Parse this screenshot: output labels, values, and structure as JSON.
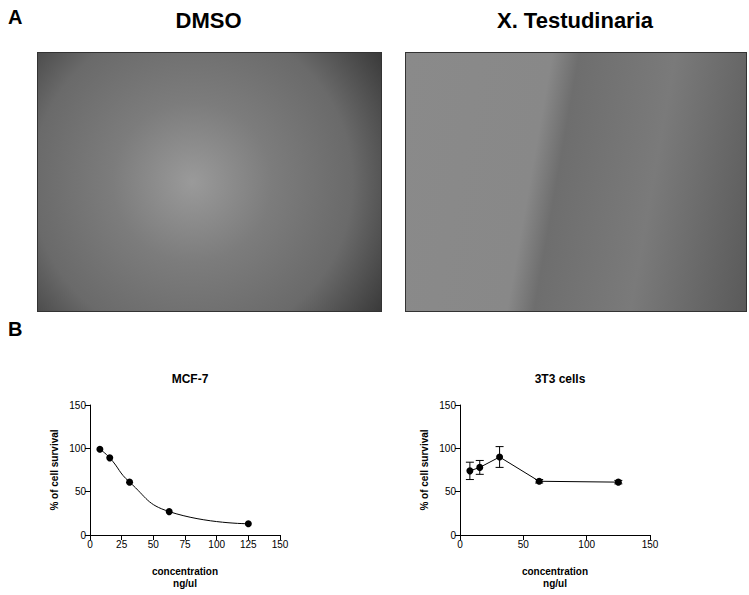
{
  "panels": {
    "A": {
      "label": "A",
      "images": [
        "DMSO",
        "X. Testudinaria"
      ]
    },
    "B": {
      "label": "B"
    }
  },
  "chart_data": [
    {
      "type": "line",
      "title": "MCF-7",
      "xlabel": "concentration\nng/ul",
      "ylabel": "% of cell survival",
      "x": [
        7.8,
        15.6,
        31.25,
        62.5,
        125
      ],
      "values": [
        99,
        89,
        61,
        27,
        13
      ],
      "color": "#000000",
      "marker": "circle",
      "line_style": "smooth",
      "xlim": [
        0,
        150
      ],
      "xticks": [
        0,
        25,
        50,
        75,
        100,
        125,
        150
      ],
      "ylim": [
        0,
        150
      ],
      "yticks": [
        0,
        50,
        100,
        150
      ],
      "grid": false
    },
    {
      "type": "line",
      "title": "3T3 cells",
      "xlabel": "concentration\nng/ul",
      "ylabel": "% of cell survival",
      "x": [
        7.8,
        15.6,
        31.25,
        62.5,
        125
      ],
      "values": [
        74,
        78,
        90,
        62,
        61
      ],
      "errors": [
        10,
        8,
        12,
        2,
        2
      ],
      "color": "#000000",
      "marker": "circle",
      "line_style": "solid",
      "xlim": [
        0,
        150
      ],
      "xticks": [
        0,
        50,
        100,
        150
      ],
      "ylim": [
        0,
        150
      ],
      "yticks": [
        0,
        50,
        100,
        150
      ],
      "grid": false
    }
  ]
}
